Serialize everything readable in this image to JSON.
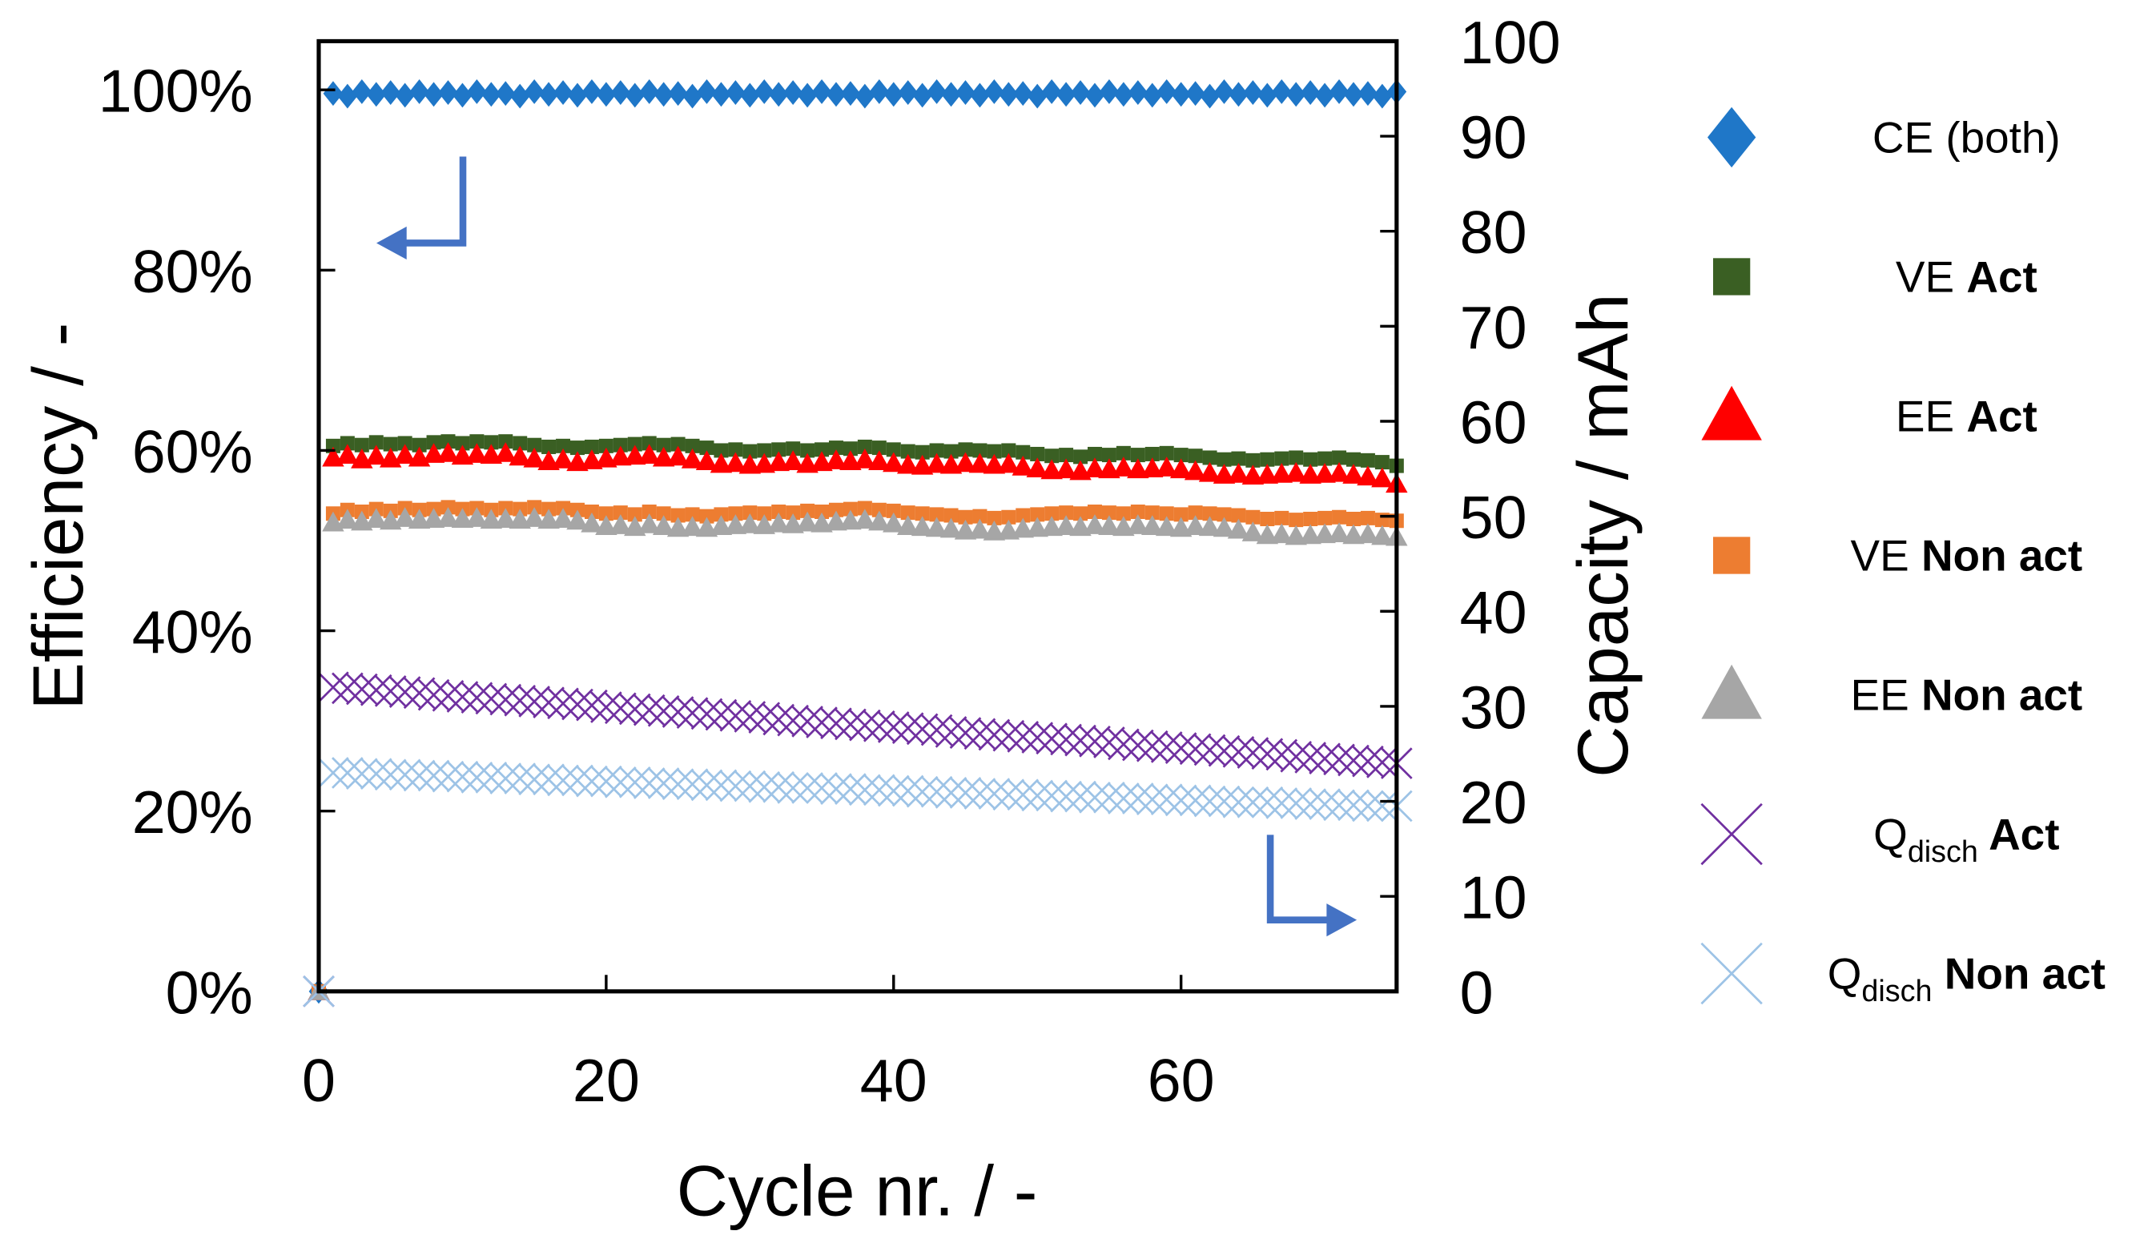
{
  "chart_data": {
    "type": "scatter",
    "title": "",
    "xlabel": "Cycle nr. / -",
    "ylabel": "Efficiency / -",
    "y2label": "Capacity / mAh",
    "xlim": [
      0,
      75
    ],
    "ylim": [
      0,
      105.4
    ],
    "y2lim": [
      0,
      100
    ],
    "xticks": [
      0,
      20,
      40,
      60
    ],
    "xtick_labels": [
      "0",
      "20",
      "40",
      "60"
    ],
    "yticks": [
      0,
      20,
      40,
      60,
      80,
      100
    ],
    "ytick_labels": [
      "0%",
      "20%",
      "40%",
      "60%",
      "80%",
      "100%"
    ],
    "y2ticks": [
      0,
      10,
      20,
      30,
      40,
      50,
      60,
      70,
      80,
      90,
      100
    ],
    "y2tick_labels": [
      "0",
      "10",
      "20",
      "30",
      "40",
      "50",
      "60",
      "70",
      "80",
      "90",
      "100"
    ],
    "grid": false,
    "legend_position": "right-outside",
    "x_start": 0,
    "series": [
      {
        "name": "CE (both)",
        "label_main": "CE (both)",
        "label_sub": "",
        "label_bold": "",
        "axis": "left",
        "marker": "diamond",
        "color": "#1f77c8",
        "values": [
          0,
          99.6,
          99.3,
          99.8,
          99.5,
          99.7,
          99.4,
          99.8,
          99.5,
          99.7,
          99.4,
          99.8,
          99.5,
          99.6,
          99.3,
          99.8,
          99.5,
          99.7,
          99.4,
          99.8,
          99.5,
          99.7,
          99.4,
          99.8,
          99.5,
          99.6,
          99.3,
          99.8,
          99.5,
          99.7,
          99.4,
          99.8,
          99.5,
          99.7,
          99.4,
          99.8,
          99.5,
          99.6,
          99.3,
          99.8,
          99.5,
          99.7,
          99.4,
          99.8,
          99.5,
          99.7,
          99.4,
          99.8,
          99.5,
          99.6,
          99.3,
          99.8,
          99.5,
          99.7,
          99.4,
          99.8,
          99.5,
          99.7,
          99.4,
          99.8,
          99.5,
          99.6,
          99.3,
          99.8,
          99.5,
          99.7,
          99.4,
          99.8,
          99.5,
          99.7,
          99.4,
          99.8,
          99.5,
          99.6,
          99.3,
          99.8
        ]
      },
      {
        "name": "VE Act",
        "label_main": "VE ",
        "label_sub": "",
        "label_bold": "Act",
        "axis": "left",
        "marker": "square",
        "color": "#3a5f23",
        "values": [
          0,
          60.5,
          60.8,
          60.6,
          60.9,
          60.7,
          60.8,
          60.6,
          60.9,
          61.0,
          60.8,
          61.0,
          60.9,
          61.0,
          60.8,
          60.6,
          60.4,
          60.5,
          60.3,
          60.4,
          60.5,
          60.6,
          60.7,
          60.8,
          60.6,
          60.7,
          60.5,
          60.3,
          60.0,
          60.1,
          59.9,
          60.0,
          60.1,
          60.2,
          60.0,
          60.1,
          60.3,
          60.2,
          60.4,
          60.3,
          60.1,
          59.9,
          59.8,
          60.0,
          59.9,
          60.1,
          60.0,
          59.9,
          60.0,
          59.8,
          59.6,
          59.4,
          59.5,
          59.3,
          59.6,
          59.5,
          59.7,
          59.5,
          59.6,
          59.7,
          59.5,
          59.4,
          59.2,
          59.0,
          59.1,
          58.9,
          59.0,
          59.1,
          59.2,
          59.0,
          59.1,
          59.2,
          59.0,
          58.9,
          58.7,
          58.3
        ]
      },
      {
        "name": "EE Act",
        "label_main": "EE ",
        "label_sub": "",
        "label_bold": "Act",
        "axis": "left",
        "marker": "triangle",
        "color": "#ff0000",
        "values": [
          0,
          59.2,
          59.5,
          59.0,
          59.4,
          59.1,
          59.5,
          59.2,
          59.6,
          59.7,
          59.4,
          59.6,
          59.5,
          59.7,
          59.3,
          59.1,
          58.8,
          59.0,
          58.7,
          58.9,
          59.1,
          59.3,
          59.4,
          59.5,
          59.2,
          59.3,
          59.0,
          58.8,
          58.5,
          58.6,
          58.4,
          58.5,
          58.7,
          58.8,
          58.5,
          58.7,
          58.9,
          58.8,
          59.0,
          58.8,
          58.6,
          58.4,
          58.3,
          58.5,
          58.4,
          58.6,
          58.5,
          58.4,
          58.5,
          58.2,
          58.0,
          57.8,
          57.9,
          57.7,
          58.0,
          57.9,
          58.1,
          57.9,
          58.0,
          58.1,
          57.9,
          57.7,
          57.5,
          57.3,
          57.4,
          57.2,
          57.3,
          57.4,
          57.5,
          57.3,
          57.4,
          57.5,
          57.3,
          57.1,
          56.9,
          56.3
        ]
      },
      {
        "name": "VE Non act",
        "label_main": "VE ",
        "label_sub": "",
        "label_bold": "Non act",
        "axis": "left",
        "marker": "square",
        "color": "#ed7d31",
        "values": [
          0,
          53.0,
          53.4,
          53.2,
          53.5,
          53.3,
          53.6,
          53.4,
          53.5,
          53.7,
          53.5,
          53.6,
          53.4,
          53.6,
          53.5,
          53.7,
          53.5,
          53.6,
          53.4,
          53.2,
          53.0,
          53.1,
          52.9,
          53.2,
          53.0,
          52.8,
          52.9,
          52.7,
          52.9,
          53.0,
          53.1,
          53.0,
          53.2,
          53.1,
          53.3,
          53.2,
          53.4,
          53.5,
          53.6,
          53.4,
          53.3,
          53.1,
          53.0,
          52.9,
          52.8,
          52.6,
          52.7,
          52.5,
          52.6,
          52.8,
          52.9,
          53.0,
          53.1,
          53.0,
          53.2,
          53.1,
          53.0,
          53.2,
          53.1,
          53.0,
          52.9,
          53.1,
          53.0,
          52.9,
          52.8,
          52.6,
          52.4,
          52.5,
          52.3,
          52.4,
          52.5,
          52.6,
          52.4,
          52.5,
          52.3,
          52.2
        ]
      },
      {
        "name": "EE Non act",
        "label_main": "EE ",
        "label_sub": "",
        "label_bold": "Non act",
        "axis": "left",
        "marker": "triangle",
        "color": "#a6a6a6",
        "values": [
          0,
          52.0,
          52.3,
          52.1,
          52.4,
          52.2,
          52.5,
          52.3,
          52.4,
          52.5,
          52.4,
          52.5,
          52.3,
          52.4,
          52.3,
          52.5,
          52.3,
          52.4,
          52.2,
          51.9,
          51.6,
          51.7,
          51.5,
          51.8,
          51.6,
          51.4,
          51.5,
          51.4,
          51.6,
          51.7,
          51.8,
          51.7,
          51.9,
          51.8,
          52.0,
          51.9,
          52.1,
          52.2,
          52.3,
          52.1,
          51.9,
          51.6,
          51.5,
          51.4,
          51.3,
          51.1,
          51.2,
          51.0,
          51.1,
          51.3,
          51.4,
          51.5,
          51.6,
          51.5,
          51.7,
          51.6,
          51.5,
          51.7,
          51.6,
          51.5,
          51.4,
          51.6,
          51.5,
          51.4,
          51.2,
          50.9,
          50.6,
          50.7,
          50.5,
          50.6,
          50.7,
          50.8,
          50.6,
          50.7,
          50.5,
          50.4
        ]
      },
      {
        "name": "Qdisch Act",
        "label_main": "Q",
        "label_sub": "disch",
        "label_bold": " Act",
        "axis": "right",
        "marker": "cross",
        "color": "#7030a0",
        "values": [
          0,
          32.0,
          31.9,
          31.8,
          31.7,
          31.6,
          31.5,
          31.4,
          31.2,
          31.1,
          31.0,
          30.9,
          30.8,
          30.7,
          30.6,
          30.5,
          30.4,
          30.3,
          30.2,
          30.1,
          29.9,
          29.8,
          29.7,
          29.6,
          29.5,
          29.4,
          29.3,
          29.2,
          29.1,
          29.0,
          28.9,
          28.8,
          28.6,
          28.5,
          28.4,
          28.3,
          28.2,
          28.1,
          28.0,
          27.9,
          27.8,
          27.7,
          27.6,
          27.5,
          27.3,
          27.2,
          27.1,
          27.0,
          26.9,
          26.8,
          26.7,
          26.6,
          26.5,
          26.4,
          26.3,
          26.2,
          26.0,
          25.9,
          25.8,
          25.7,
          25.6,
          25.5,
          25.4,
          25.3,
          25.2,
          25.1,
          25.0,
          24.9,
          24.7,
          24.6,
          24.5,
          24.4,
          24.3,
          24.2,
          24.1,
          24.0
        ]
      },
      {
        "name": "Qdisch Non act",
        "label_main": "Q",
        "label_sub": "disch",
        "label_bold": " Non act",
        "axis": "right",
        "marker": "cross",
        "color": "#9dc3e6",
        "values": [
          0,
          23.0,
          23.0,
          22.9,
          22.9,
          22.8,
          22.8,
          22.7,
          22.7,
          22.6,
          22.6,
          22.5,
          22.5,
          22.4,
          22.4,
          22.3,
          22.3,
          22.2,
          22.2,
          22.1,
          22.1,
          22.0,
          22.0,
          21.9,
          21.9,
          21.8,
          21.8,
          21.7,
          21.7,
          21.6,
          21.6,
          21.5,
          21.5,
          21.4,
          21.4,
          21.4,
          21.3,
          21.3,
          21.2,
          21.2,
          21.1,
          21.1,
          21.0,
          21.0,
          20.9,
          20.9,
          20.8,
          20.8,
          20.7,
          20.7,
          20.6,
          20.6,
          20.5,
          20.5,
          20.4,
          20.4,
          20.3,
          20.3,
          20.2,
          20.2,
          20.1,
          20.1,
          20.0,
          20.0,
          19.9,
          19.9,
          19.9,
          19.8,
          19.8,
          19.7,
          19.7,
          19.6,
          19.6,
          19.5,
          19.5,
          19.5
        ]
      }
    ],
    "annotations": [
      "arrow pointing to left axis",
      "arrow pointing to right axis"
    ],
    "arrow_color": "#4472c4"
  }
}
